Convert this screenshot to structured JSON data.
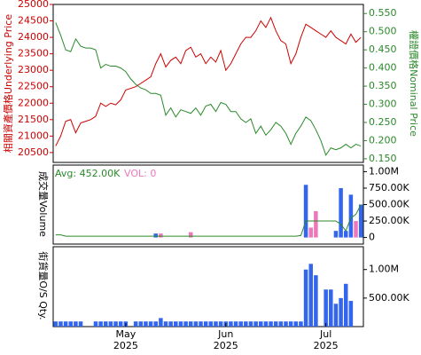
{
  "chart_data": [
    {
      "type": "line",
      "ylabel": "相關資產價格Underlying Price",
      "y2label": "權證價格Nominal Price",
      "ylim": [
        20200,
        25000
      ],
      "yticks": [
        20500,
        21000,
        21500,
        22000,
        22500,
        23000,
        23500,
        24000,
        24500,
        25000
      ],
      "y2lim": [
        0.14,
        0.575
      ],
      "y2ticks": [
        {
          "value": 0.15,
          "label": "0.150"
        },
        {
          "value": 0.2,
          "label": "0.200"
        },
        {
          "value": 0.25,
          "label": "0.250"
        },
        {
          "value": 0.3,
          "label": "0.300"
        },
        {
          "value": 0.35,
          "label": "0.350"
        },
        {
          "value": 0.4,
          "label": "0.400"
        },
        {
          "value": 0.45,
          "label": "0.450"
        },
        {
          "value": 0.5,
          "label": "0.500"
        },
        {
          "value": 0.55,
          "label": "0.550"
        }
      ],
      "series": [
        {
          "color": "#cc0000",
          "values": [
            20700,
            21000,
            21450,
            21500,
            21100,
            21400,
            21450,
            21500,
            21600,
            22000,
            21900,
            22000,
            21950,
            22100,
            22400,
            22450,
            22500,
            22600,
            22700,
            22800,
            23200,
            23500,
            23100,
            23300,
            23400,
            23200,
            23600,
            23700,
            23400,
            23500,
            23200,
            23400,
            23250,
            23600,
            23000,
            23200,
            23500,
            23800,
            24000,
            24000,
            24200,
            24500,
            24300,
            24600,
            24200,
            23900,
            23800,
            23200,
            23500,
            24000,
            24400,
            24300,
            24200,
            24100,
            24000,
            24200,
            24000,
            23900,
            23800,
            24100,
            23850,
            24000
          ]
        },
        {
          "color": "#2a8a2a",
          "axis": "y2",
          "values": [
            0.525,
            0.49,
            0.45,
            0.445,
            0.48,
            0.46,
            0.455,
            0.455,
            0.45,
            0.4,
            0.41,
            0.405,
            0.405,
            0.4,
            0.39,
            0.37,
            0.355,
            0.345,
            0.34,
            0.33,
            0.33,
            0.325,
            0.27,
            0.29,
            0.265,
            0.285,
            0.28,
            0.275,
            0.29,
            0.27,
            0.295,
            0.3,
            0.28,
            0.305,
            0.3,
            0.28,
            0.28,
            0.26,
            0.25,
            0.26,
            0.22,
            0.24,
            0.215,
            0.23,
            0.25,
            0.24,
            0.22,
            0.19,
            0.22,
            0.24,
            0.265,
            0.255,
            0.23,
            0.2,
            0.16,
            0.18,
            0.175,
            0.18,
            0.19,
            0.18,
            0.19,
            0.185
          ]
        }
      ]
    },
    {
      "type": "bar",
      "ylabel": "成交量Volume",
      "avg_label": "Avg: 452.00K",
      "vol_label": "VOL: 0",
      "ylim": [
        -100000,
        1100000
      ],
      "yticks": [
        0,
        {
          "value": 250000,
          "label": "250.00K"
        },
        {
          "value": 500000,
          "label": "500.00K"
        },
        {
          "value": 750000,
          "label": "750.00K"
        },
        {
          "value": 1000000,
          "label": "1.00M"
        }
      ],
      "series": [
        {
          "color": "#3366ee",
          "values": [
            null,
            null,
            null,
            null,
            null,
            null,
            null,
            null,
            null,
            null,
            null,
            null,
            null,
            null,
            null,
            null,
            null,
            null,
            null,
            null,
            60000,
            null,
            null,
            null,
            null,
            null,
            null,
            null,
            null,
            null,
            null,
            null,
            null,
            null,
            null,
            null,
            null,
            null,
            null,
            null,
            null,
            null,
            null,
            null,
            null,
            null,
            null,
            null,
            null,
            null,
            800000,
            null,
            null,
            null,
            null,
            null,
            100000,
            750000,
            100000,
            650000,
            null,
            500000
          ]
        },
        {
          "color": "#ee77bb",
          "values": [
            null,
            null,
            null,
            null,
            null,
            null,
            null,
            null,
            null,
            null,
            null,
            null,
            null,
            null,
            null,
            null,
            null,
            null,
            null,
            null,
            null,
            60000,
            null,
            null,
            null,
            null,
            null,
            80000,
            null,
            null,
            null,
            null,
            null,
            null,
            null,
            null,
            null,
            null,
            null,
            null,
            null,
            null,
            null,
            null,
            null,
            null,
            null,
            null,
            null,
            null,
            null,
            150000,
            400000,
            null,
            null,
            null,
            null,
            null,
            null,
            null,
            250000,
            null
          ]
        },
        {
          "color": "#2a8a2a",
          "type": "line",
          "values": [
            40000,
            40000,
            20000,
            20000,
            20000,
            20000,
            20000,
            20000,
            20000,
            20000,
            20000,
            20000,
            20000,
            20000,
            20000,
            20000,
            20000,
            20000,
            20000,
            20000,
            20000,
            20000,
            20000,
            20000,
            20000,
            20000,
            20000,
            20000,
            20000,
            20000,
            20000,
            20000,
            20000,
            20000,
            20000,
            20000,
            20000,
            20000,
            20000,
            20000,
            20000,
            20000,
            20000,
            20000,
            20000,
            20000,
            20000,
            20000,
            20000,
            30000,
            250000,
            250000,
            250000,
            250000,
            250000,
            250000,
            250000,
            200000,
            100000,
            300000,
            350000,
            500000
          ]
        }
      ]
    },
    {
      "type": "bar",
      "ylabel": "街貨量O/S Qty.",
      "ylim": [
        0,
        1400000
      ],
      "yticks": [
        {
          "value": 500000,
          "label": "500.00K"
        },
        {
          "value": 1000000,
          "label": "1.00M"
        }
      ],
      "categories": [
        null,
        null,
        null,
        null,
        null,
        null,
        null,
        null,
        null,
        null,
        null,
        null,
        null,
        null,
        "May 2025",
        null,
        null,
        null,
        null,
        null,
        null,
        null,
        null,
        null,
        null,
        null,
        null,
        null,
        null,
        null,
        null,
        null,
        null,
        null,
        "Jun 2025",
        null,
        null,
        null,
        null,
        null,
        null,
        null,
        null,
        null,
        null,
        null,
        null,
        null,
        null,
        null,
        null,
        null,
        null,
        null,
        "Jul 2025",
        null,
        null,
        null,
        null,
        null,
        null,
        null
      ],
      "series": [
        {
          "color": "#3366ee",
          "values": [
            90000,
            90000,
            90000,
            90000,
            90000,
            90000,
            null,
            null,
            90000,
            90000,
            90000,
            90000,
            90000,
            90000,
            90000,
            null,
            90000,
            90000,
            90000,
            90000,
            90000,
            150000,
            90000,
            90000,
            90000,
            90000,
            90000,
            90000,
            90000,
            90000,
            90000,
            90000,
            90000,
            90000,
            90000,
            90000,
            90000,
            90000,
            90000,
            90000,
            90000,
            90000,
            90000,
            90000,
            90000,
            90000,
            90000,
            90000,
            90000,
            90000,
            1000000,
            1100000,
            900000,
            null,
            650000,
            650000,
            400000,
            500000,
            750000,
            450000,
            null,
            null
          ]
        }
      ]
    }
  ]
}
